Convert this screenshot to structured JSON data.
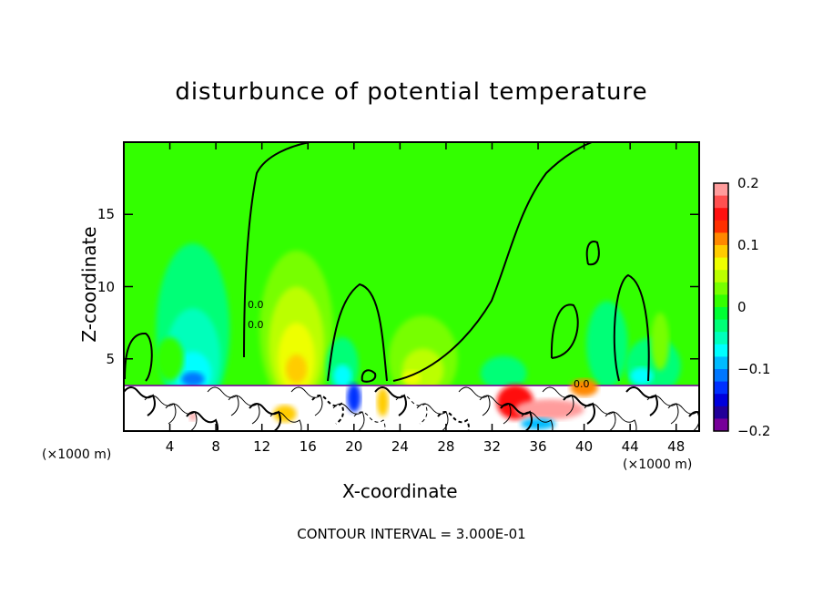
{
  "chart_data": {
    "type": "heatmap",
    "title": "disturbunce of potential temperature",
    "xlabel": "X-coordinate",
    "ylabel": "Z-coordinate",
    "x_unit_label": "(×1000 m)",
    "xlim": [
      0,
      50
    ],
    "ylim": [
      0,
      20
    ],
    "x_ticks": [
      4,
      8,
      12,
      16,
      20,
      24,
      28,
      32,
      36,
      40,
      44,
      48
    ],
    "y_ticks": [
      5,
      10,
      15
    ],
    "colorbar": {
      "range": [
        -0.2,
        0.2
      ],
      "step": 0.02,
      "tick_labels": [
        "0.2",
        "0.1",
        "0",
        "−0.1",
        "−0.2"
      ],
      "tick_values": [
        0.2,
        0.1,
        0,
        -0.1,
        -0.2
      ],
      "colors_top_to_bottom": [
        "#ff9c9c",
        "#ff5050",
        "#ff1010",
        "#ff3000",
        "#ff8800",
        "#ffcc00",
        "#eeff00",
        "#bbff00",
        "#77ff00",
        "#33ff00",
        "#00ff33",
        "#00ff77",
        "#00ffbb",
        "#00ffff",
        "#00bbff",
        "#0077ff",
        "#0030ff",
        "#0000dd",
        "#220099",
        "#770099"
      ]
    },
    "contour_labels": [
      "0.0",
      "0.0",
      "0.0"
    ],
    "footer": "CONTOUR INTERVAL = 3.000E-01"
  }
}
